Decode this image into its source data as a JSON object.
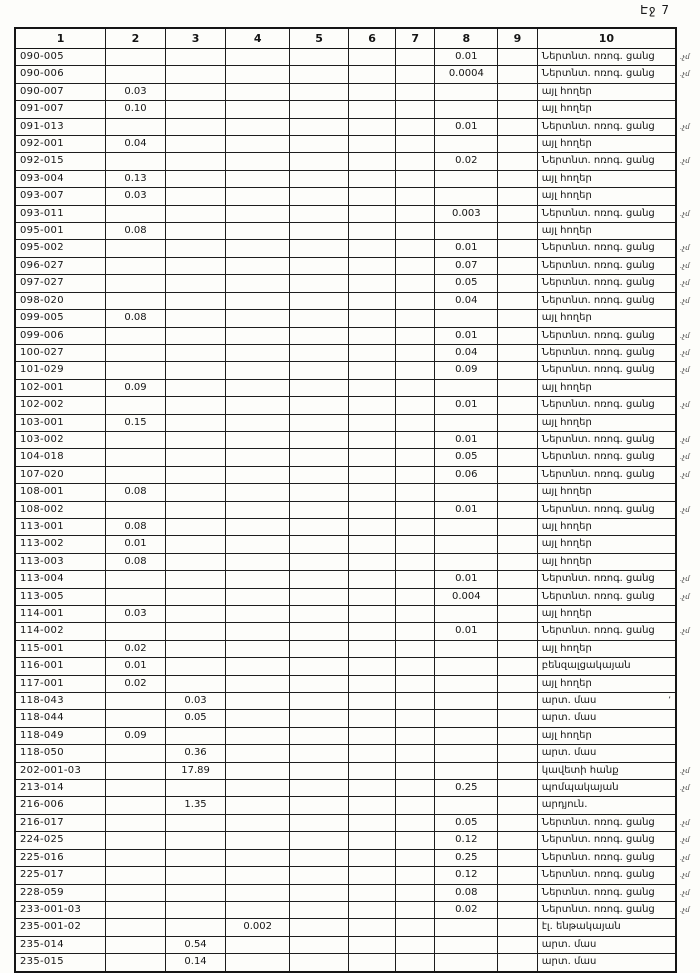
{
  "page": {
    "label": "Էջ 7"
  },
  "colors": {
    "paper": "#fdfdfa",
    "ink": "#151515",
    "line": "#1d1d1d"
  },
  "table": {
    "columns": [
      "1",
      "2",
      "3",
      "4",
      "5",
      "6",
      "7",
      "8",
      "9",
      "10"
    ],
    "margin_note": ".չմ",
    "labels": {
      "irrigation": "Ներտնտ. ոռոգ. ցանց",
      "other_lands": "այլ հողեր",
      "gas_station": "բենզալցակայան",
      "arable_part": "արտ. մաս",
      "clay_mine": "կավետի հանք",
      "pump_station": "պոմպակայան",
      "industrial": "արդյուն.",
      "substation": "էլ. ենթակայան"
    },
    "rows": [
      {
        "c1": "090-005",
        "c8": "0.01",
        "c10": "Ներտնտ. ոռոգ. ցանց",
        "note": true
      },
      {
        "c1": "090-006",
        "c8": "0.0004",
        "c10": "Ներտնտ. ոռոգ. ցանց",
        "note": true
      },
      {
        "c1": "090-007",
        "c2": "0.03",
        "c10": "այլ հողեր"
      },
      {
        "c1": "091-007",
        "c2": "0.10",
        "c10": "այլ հողեր"
      },
      {
        "c1": "091-013",
        "c8": "0.01",
        "c10": "Ներտնտ. ոռոգ. ցանց",
        "note": true
      },
      {
        "c1": "092-001",
        "c2": "0.04",
        "c10": "այլ հողեր"
      },
      {
        "c1": "092-015",
        "c8": "0.02",
        "c10": "Ներտնտ. ոռոգ. ցանց",
        "note": true
      },
      {
        "c1": "093-004",
        "c2": "0.13",
        "c10": "այլ հողեր"
      },
      {
        "c1": "093-007",
        "c2": "0.03",
        "c10": "այլ հողեր"
      },
      {
        "c1": "093-011",
        "c8": "0.003",
        "c10": "Ներտնտ. ոռոգ. ցանց",
        "note": true
      },
      {
        "c1": "095-001",
        "c2": "0.08",
        "c10": "այլ հողեր"
      },
      {
        "c1": "095-002",
        "c8": "0.01",
        "c10": "Ներտնտ. ոռոգ. ցանց",
        "note": true
      },
      {
        "c1": "096-027",
        "c8": "0.07",
        "c10": "Ներտնտ. ոռոգ. ցանց",
        "note": true
      },
      {
        "c1": "097-027",
        "c8": "0.05",
        "c10": "Ներտնտ. ոռոգ. ցանց",
        "note": true
      },
      {
        "c1": "098-020",
        "c8": "0.04",
        "c10": "Ներտնտ. ոռոգ. ցանց",
        "note": true
      },
      {
        "c1": "099-005",
        "c2": "0.08",
        "c10": "այլ հողեր"
      },
      {
        "c1": "099-006",
        "c8": "0.01",
        "c10": "Ներտնտ. ոռոգ. ցանց",
        "note": true
      },
      {
        "c1": "100-027",
        "c8": "0.04",
        "c10": "Ներտնտ. ոռոգ. ցանց",
        "note": true
      },
      {
        "c1": "101-029",
        "c8": "0.09",
        "c10": "Ներտնտ. ոռոգ. ցանց",
        "note": true
      },
      {
        "c1": "102-001",
        "c2": "0.09",
        "c10": "այլ հողեր"
      },
      {
        "c1": "102-002",
        "c8": "0.01",
        "c10": "Ներտնտ. ոռոգ. ցանց",
        "note": true
      },
      {
        "c1": "103-001",
        "c2": "0.15",
        "c10": "այլ հողեր"
      },
      {
        "c1": "103-002",
        "c8": "0.01",
        "c10": "Ներտնտ. ոռոգ. ցանց",
        "note": true
      },
      {
        "c1": "104-018",
        "c8": "0.05",
        "c10": "Ներտնտ. ոռոգ. ցանց",
        "note": true
      },
      {
        "c1": "107-020",
        "c8": "0.06",
        "c10": "Ներտնտ. ոռոգ. ցանց",
        "note": true
      },
      {
        "c1": "108-001",
        "c2": "0.08",
        "c10": "այլ հողեր"
      },
      {
        "c1": "108-002",
        "c8": "0.01",
        "c10": "Ներտնտ. ոռոգ. ցանց",
        "note": true
      },
      {
        "c1": "113-001",
        "c2": "0.08",
        "c10": "այլ հողեր"
      },
      {
        "c1": "113-002",
        "c2": "0.01",
        "c10": "այլ հողեր"
      },
      {
        "c1": "113-003",
        "c2": "0.08",
        "c10": "այլ հողեր"
      },
      {
        "c1": "113-004",
        "c8": "0.01",
        "c10": "Ներտնտ. ոռոգ. ցանց",
        "note": true
      },
      {
        "c1": "113-005",
        "c8": "0.004",
        "c10": "Ներտնտ. ոռոգ. ցանց",
        "note": true
      },
      {
        "c1": "114-001",
        "c2": "0.03",
        "c10": "այլ հողեր"
      },
      {
        "c1": "114-002",
        "c8": "0.01",
        "c10": "Ներտնտ. ոռոգ. ցանց",
        "note": true
      },
      {
        "c1": "115-001",
        "c2": "0.02",
        "c10": "այլ հողեր"
      },
      {
        "c1": "116-001",
        "c2": "0.01",
        "c10": "բենզալցակայան"
      },
      {
        "c1": "117-001",
        "c2": "0.02",
        "c10": "այլ հողեր"
      },
      {
        "c1": "118-043",
        "c3": "0.03",
        "c10": "արտ. մաս",
        "tick": true
      },
      {
        "c1": "118-044",
        "c3": "0.05",
        "c10": "արտ. մաս"
      },
      {
        "c1": "118-049",
        "c2": "0.09",
        "c10": "այլ հողեր"
      },
      {
        "c1": "118-050",
        "c3": "0.36",
        "c10": "արտ. մաս"
      },
      {
        "c1": "202-001-03",
        "c3": "17.89",
        "c10": "կավետի հանք",
        "note": true
      },
      {
        "c1": "213-014",
        "c8": "0.25",
        "c10": "պոմպակայան",
        "note": true
      },
      {
        "c1": "216-006",
        "c3": "1.35",
        "c10": "արդյուն."
      },
      {
        "c1": "216-017",
        "c8": "0.05",
        "c10": "Ներտնտ. ոռոգ. ցանց",
        "note": true
      },
      {
        "c1": "224-025",
        "c8": "0.12",
        "c10": "Ներտնտ. ոռոգ. ցանց",
        "note": true
      },
      {
        "c1": "225-016",
        "c8": "0.25",
        "c10": "Ներտնտ. ոռոգ. ցանց",
        "note": true
      },
      {
        "c1": "225-017",
        "c8": "0.12",
        "c10": "Ներտնտ. ոռոգ. ցանց",
        "note": true
      },
      {
        "c1": "228-059",
        "c8": "0.08",
        "c10": "Ներտնտ. ոռոգ. ցանց",
        "note": true
      },
      {
        "c1": "233-001-03",
        "c8": "0.02",
        "c10": "Ներտնտ. ոռոգ. ցանց",
        "note": true
      },
      {
        "c1": "235-001-02",
        "c4": "0.002",
        "c10": "էլ. ենթակայան"
      },
      {
        "c1": "235-014",
        "c3": "0.54",
        "c10": "արտ. մաս"
      },
      {
        "c1": "235-015",
        "c3": "0.14",
        "c10": "արտ. մաս"
      }
    ]
  }
}
